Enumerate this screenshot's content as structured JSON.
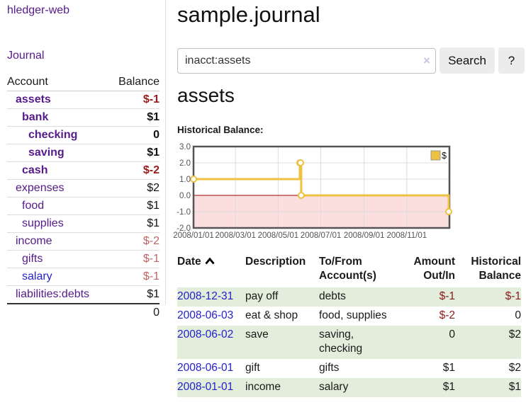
{
  "sidebar": {
    "brand": "hledger-web",
    "nav": {
      "journal": "Journal"
    },
    "accounts_table": {
      "headers": {
        "account": "Account",
        "balance": "Balance"
      },
      "rows": [
        {
          "name": "assets",
          "balance": "$-1",
          "depth": 1,
          "bold": true,
          "name_color": "purple",
          "balance_color": "strong-red"
        },
        {
          "name": "bank",
          "balance": "$1",
          "depth": 2,
          "bold": true,
          "name_color": "purple",
          "balance_color": "black"
        },
        {
          "name": "checking",
          "balance": "0",
          "depth": 3,
          "bold": true,
          "name_color": "purple",
          "balance_color": "black"
        },
        {
          "name": "saving",
          "balance": "$1",
          "depth": 3,
          "bold": true,
          "name_color": "purple",
          "balance_color": "black"
        },
        {
          "name": "cash",
          "balance": "$-2",
          "depth": 2,
          "bold": true,
          "name_color": "purple",
          "balance_color": "strong-red"
        },
        {
          "name": "expenses",
          "balance": "$2",
          "depth": 1,
          "bold": false,
          "name_color": "purple",
          "balance_color": "black"
        },
        {
          "name": "food",
          "balance": "$1",
          "depth": 2,
          "bold": false,
          "name_color": "purple",
          "balance_color": "black"
        },
        {
          "name": "supplies",
          "balance": "$1",
          "depth": 2,
          "bold": false,
          "name_color": "purple",
          "balance_color": "black"
        },
        {
          "name": "income",
          "balance": "$-2",
          "depth": 1,
          "bold": false,
          "name_color": "purple",
          "balance_color": "soft-red"
        },
        {
          "name": "gifts",
          "balance": "$-1",
          "depth": 2,
          "bold": false,
          "name_color": "purple",
          "balance_color": "soft-red"
        },
        {
          "name": "salary",
          "balance": "$-1",
          "depth": 2,
          "bold": false,
          "name_color": "blue",
          "balance_color": "soft-red"
        },
        {
          "name": "liabilities:debts",
          "balance": "$1",
          "depth": 1,
          "bold": false,
          "name_color": "purple",
          "balance_color": "black"
        }
      ],
      "total": "0"
    }
  },
  "main": {
    "title": "sample.journal",
    "search": {
      "value": "inacct:assets",
      "clear_icon": "×",
      "button_label": "Search",
      "help_label": "?"
    },
    "account_heading": "assets",
    "chart_label": "Historical Balance:"
  },
  "chart_data": {
    "type": "line",
    "subtype": "step-line with markers and shaded negative region",
    "title": "Historical Balance:",
    "series": [
      {
        "name": "$",
        "color": "#EDC240",
        "points": [
          {
            "date": "2008-01-01",
            "value": 1
          },
          {
            "date": "2008-06-01",
            "value": 2
          },
          {
            "date": "2008-06-02",
            "value": 2
          },
          {
            "date": "2008-06-03",
            "value": 0
          },
          {
            "date": "2008-12-31",
            "value": -1
          }
        ]
      }
    ],
    "x_range": [
      "2008-01-01",
      "2009-01-01"
    ],
    "ylim": [
      -2,
      3
    ],
    "y_ticks": [
      3,
      2,
      1,
      0,
      -1,
      -2
    ],
    "x_ticks": [
      {
        "date": "2008-01-01",
        "label": "2008/01/01"
      },
      {
        "date": "2008-03-01",
        "label": "2008/03/01"
      },
      {
        "date": "2008-05-01",
        "label": "2008/05/01"
      },
      {
        "date": "2008-07-01",
        "label": "2008/07/01"
      },
      {
        "date": "2008-09-01",
        "label": "2008/09/01"
      },
      {
        "date": "2008-11-01",
        "label": "2008/11/01"
      }
    ],
    "legend_position": "top-right",
    "grid": true,
    "colors": {
      "negative_region": "#FBDEDE",
      "zero_line": "#A40000",
      "border": "#545454",
      "gridline": "#DCDCDC",
      "axis_labels": "#545454"
    }
  },
  "transactions": {
    "headers": {
      "date": "Date",
      "description": "Description",
      "accounts": "To/From Account(s)",
      "amount": "Amount Out/In",
      "balance": "Historical Balance"
    },
    "rows": [
      {
        "date": "2008-12-31",
        "description": "pay off",
        "accounts": "debts",
        "amount": "$-1",
        "balance": "$-1"
      },
      {
        "date": "2008-06-03",
        "description": "eat & shop",
        "accounts": "food, supplies",
        "amount": "$-2",
        "balance": "0"
      },
      {
        "date": "2008-06-02",
        "description": "save",
        "accounts": "saving, checking",
        "amount": "0",
        "balance": "$2"
      },
      {
        "date": "2008-06-01",
        "description": "gift",
        "accounts": "gifts",
        "amount": "$1",
        "balance": "$2"
      },
      {
        "date": "2008-01-01",
        "description": "income",
        "accounts": "salary",
        "amount": "$1",
        "balance": "$1"
      }
    ]
  }
}
